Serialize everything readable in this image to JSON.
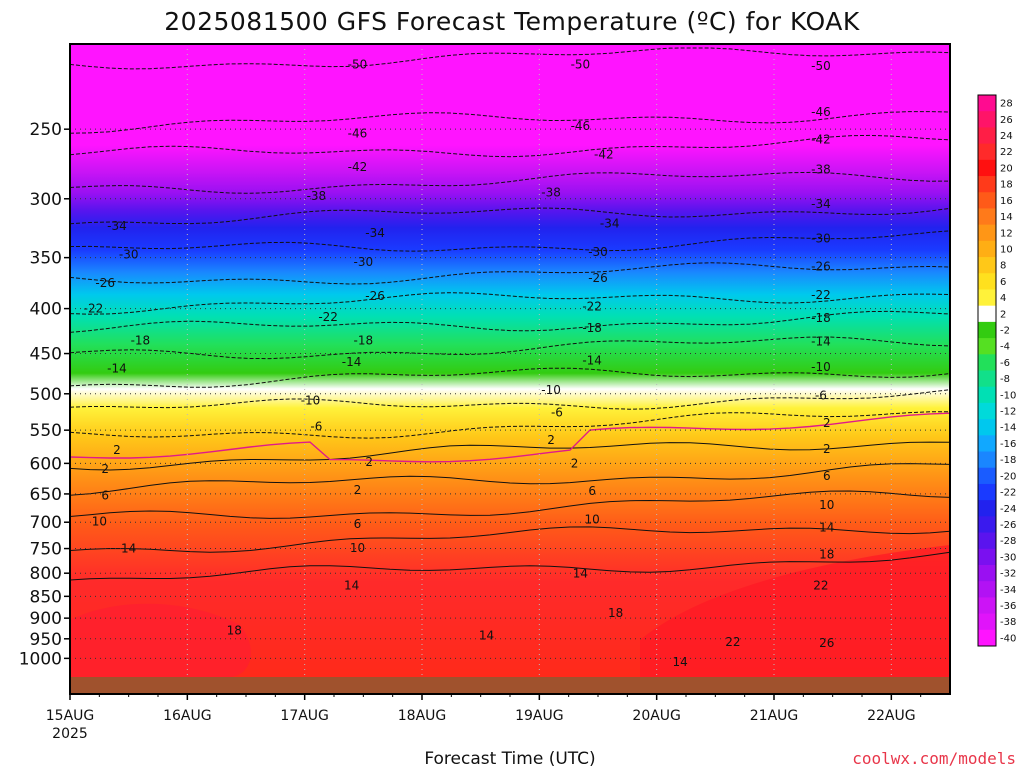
{
  "chart_data": {
    "type": "heatmap",
    "title": "2025081500 GFS Forecast Temperature (ºC) for KOAK",
    "xlabel": "Forecast Time (UTC)",
    "ylabel": "",
    "x_ticks": [
      "15AUG",
      "16AUG",
      "17AUG",
      "18AUG",
      "19AUG",
      "20AUG",
      "21AUG",
      "22AUG"
    ],
    "x_year_label": "2025",
    "x_range_days": [
      0,
      7.5
    ],
    "y_scale": "log",
    "y_range": [
      200,
      1050
    ],
    "y_ticks": [
      250,
      300,
      350,
      400,
      450,
      500,
      550,
      600,
      650,
      700,
      750,
      800,
      850,
      900,
      950,
      1000
    ],
    "grid": true,
    "colorbar": {
      "labels": [
        28,
        26,
        24,
        22,
        20,
        18,
        16,
        14,
        12,
        10,
        8,
        6,
        4,
        2,
        -2,
        -4,
        -6,
        -8,
        -10,
        -12,
        -14,
        -16,
        -18,
        -20,
        -22,
        -24,
        -26,
        -28,
        -30,
        -32,
        -34,
        -36,
        -38,
        -40
      ],
      "colors": [
        "#ff0b90",
        "#ff1468",
        "#ff1e46",
        "#ff2a2a",
        "#ff1010",
        "#ff3a1a",
        "#ff5a18",
        "#ff7a1a",
        "#ff9616",
        "#ffae14",
        "#ffc818",
        "#ffe01e",
        "#fff23a",
        "#ffffff",
        "#33cc11",
        "#55e022",
        "#22e05a",
        "#11e08a",
        "#00e0b4",
        "#00dada",
        "#00c8ee",
        "#11a8ff",
        "#1a86ff",
        "#1a5cff",
        "#1a3aff",
        "#2222ee",
        "#3a1aee",
        "#5a14ee",
        "#7a10f0",
        "#9a10f2",
        "#b212f4",
        "#cc14f6",
        "#e014fa",
        "#ff14ff"
      ]
    },
    "contour_labels": [
      {
        "value": "-50",
        "day": 2.45,
        "p": 211
      },
      {
        "value": "-50",
        "day": 4.35,
        "p": 211
      },
      {
        "value": "-50",
        "day": 6.4,
        "p": 212
      },
      {
        "value": "-46",
        "day": 2.45,
        "p": 253
      },
      {
        "value": "-46",
        "day": 4.35,
        "p": 248
      },
      {
        "value": "-46",
        "day": 6.4,
        "p": 239
      },
      {
        "value": "-42",
        "day": 2.45,
        "p": 276
      },
      {
        "value": "-42",
        "day": 4.55,
        "p": 267
      },
      {
        "value": "-42",
        "day": 6.4,
        "p": 257
      },
      {
        "value": "-38",
        "day": 2.1,
        "p": 298
      },
      {
        "value": "-38",
        "day": 4.1,
        "p": 295
      },
      {
        "value": "-38",
        "day": 6.4,
        "p": 278
      },
      {
        "value": "-34",
        "day": 0.4,
        "p": 322
      },
      {
        "value": "-34",
        "day": 2.6,
        "p": 328
      },
      {
        "value": "-34",
        "day": 4.6,
        "p": 320
      },
      {
        "value": "-34",
        "day": 6.4,
        "p": 304
      },
      {
        "value": "-30",
        "day": 0.5,
        "p": 347
      },
      {
        "value": "-30",
        "day": 2.5,
        "p": 354
      },
      {
        "value": "-30",
        "day": 4.5,
        "p": 345
      },
      {
        "value": "-30",
        "day": 6.4,
        "p": 333
      },
      {
        "value": "-26",
        "day": 0.3,
        "p": 374
      },
      {
        "value": "-26",
        "day": 2.6,
        "p": 387
      },
      {
        "value": "-26",
        "day": 4.5,
        "p": 369
      },
      {
        "value": "-26",
        "day": 6.4,
        "p": 358
      },
      {
        "value": "-22",
        "day": 0.2,
        "p": 400
      },
      {
        "value": "-22",
        "day": 2.2,
        "p": 409
      },
      {
        "value": "-22",
        "day": 4.45,
        "p": 398
      },
      {
        "value": "-22",
        "day": 6.4,
        "p": 386
      },
      {
        "value": "-18",
        "day": 0.6,
        "p": 435
      },
      {
        "value": "-18",
        "day": 2.5,
        "p": 435
      },
      {
        "value": "-18",
        "day": 4.45,
        "p": 421
      },
      {
        "value": "-18",
        "day": 6.4,
        "p": 410
      },
      {
        "value": "-14",
        "day": 0.4,
        "p": 468
      },
      {
        "value": "-14",
        "day": 2.4,
        "p": 460
      },
      {
        "value": "-14",
        "day": 4.45,
        "p": 458
      },
      {
        "value": "-14",
        "day": 6.4,
        "p": 436
      },
      {
        "value": "-10",
        "day": 2.05,
        "p": 509
      },
      {
        "value": "-10",
        "day": 4.1,
        "p": 495
      },
      {
        "value": "-10",
        "day": 6.4,
        "p": 466
      },
      {
        "value": "-6",
        "day": 2.1,
        "p": 545
      },
      {
        "value": "-6",
        "day": 4.15,
        "p": 525
      },
      {
        "value": "-6",
        "day": 6.4,
        "p": 502
      },
      {
        "value": "2",
        "day": 0.4,
        "p": 579
      },
      {
        "value": "2",
        "day": 2.55,
        "p": 598
      },
      {
        "value": "2",
        "day": 4.1,
        "p": 564
      },
      {
        "value": "2",
        "day": 6.45,
        "p": 540
      },
      {
        "value": "2",
        "day": 0.3,
        "p": 609
      },
      {
        "value": "2",
        "day": 2.45,
        "p": 643
      },
      {
        "value": "2",
        "day": 4.3,
        "p": 600
      },
      {
        "value": "2",
        "day": 6.45,
        "p": 578
      },
      {
        "value": "6",
        "day": 0.3,
        "p": 653
      },
      {
        "value": "6",
        "day": 2.45,
        "p": 703
      },
      {
        "value": "6",
        "day": 4.45,
        "p": 645
      },
      {
        "value": "6",
        "day": 6.45,
        "p": 620
      },
      {
        "value": "10",
        "day": 0.25,
        "p": 699
      },
      {
        "value": "10",
        "day": 2.45,
        "p": 749
      },
      {
        "value": "10",
        "day": 4.45,
        "p": 695
      },
      {
        "value": "10",
        "day": 6.45,
        "p": 669
      },
      {
        "value": "14",
        "day": 0.5,
        "p": 750
      },
      {
        "value": "14",
        "day": 2.4,
        "p": 826
      },
      {
        "value": "14",
        "day": 4.35,
        "p": 801
      },
      {
        "value": "14",
        "day": 6.45,
        "p": 710
      },
      {
        "value": "18",
        "day": 1.4,
        "p": 930
      },
      {
        "value": "18",
        "day": 4.65,
        "p": 888
      },
      {
        "value": "18",
        "day": 6.45,
        "p": 762
      },
      {
        "value": "14",
        "day": 3.55,
        "p": 942
      },
      {
        "value": "14",
        "day": 5.2,
        "p": 1010
      },
      {
        "value": "22",
        "day": 6.4,
        "p": 826
      },
      {
        "value": "22",
        "day": 5.65,
        "p": 958
      },
      {
        "value": "26",
        "day": 6.45,
        "p": 960
      }
    ]
  },
  "credit": "coolwx.com/models"
}
